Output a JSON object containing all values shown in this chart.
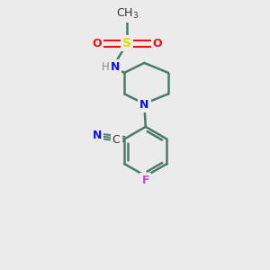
{
  "background_color": "#ebebeb",
  "bond_color": "#4a7a6a",
  "N_color": "#1010ee",
  "O_color": "#ee1010",
  "S_color": "#dddd00",
  "F_color": "#cc44cc",
  "H_color": "#888888",
  "text_color": "#333333",
  "figsize": [
    3.0,
    3.0
  ],
  "dpi": 100,
  "xlim": [
    0,
    10
  ],
  "ylim": [
    0,
    10
  ]
}
